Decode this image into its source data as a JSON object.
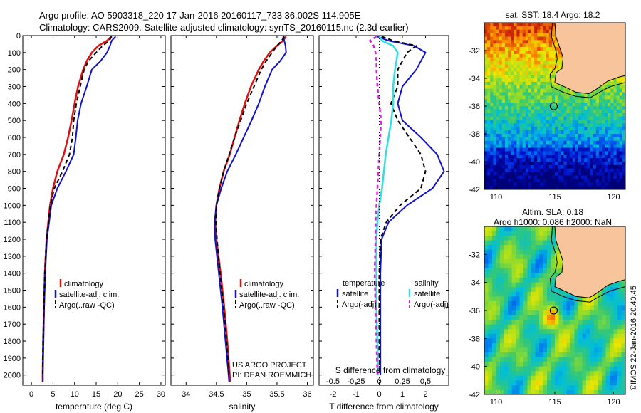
{
  "header": {
    "line1": "Argo profile: AO 5903318_220 17-Jan-2016 20160117_733 36.002S 114.905E",
    "line2": "Climatology: CARS2009. Satellite-adjusted climatology: synTS_20160115.nc (2.3d earlier)"
  },
  "colors": {
    "climatology": "#e01010",
    "satellite": "#1010d0",
    "argo": "#000000",
    "salinity_satellite": "#30e0e0",
    "salinity_argo": "#e020e0",
    "land": "#f8c49c",
    "coast": "#000000",
    "contour": "#000000"
  },
  "chart_data": [
    {
      "id": "temperature",
      "type": "line",
      "xlabel": "temperature (deg C)",
      "xlim": [
        -2,
        31
      ],
      "xticks": [
        0,
        5,
        10,
        15,
        20,
        25,
        30
      ],
      "ylim": [
        2060,
        0
      ],
      "yticks": [
        0,
        100,
        200,
        300,
        400,
        500,
        600,
        700,
        800,
        900,
        1000,
        1100,
        1200,
        1300,
        1400,
        1500,
        1600,
        1700,
        1800,
        1900,
        2000
      ],
      "legend": [
        "climatology",
        "satellite-adj. clim.",
        "Argo(..raw -QC)"
      ],
      "series": [
        {
          "name": "climatology",
          "y": [
            5,
            30,
            60,
            100,
            150,
            200,
            300,
            400,
            500,
            600,
            700,
            800,
            900,
            1000,
            1200,
            1400,
            1600,
            1800,
            2000,
            2040
          ],
          "x": [
            18.5,
            17.5,
            15.5,
            14.0,
            12.8,
            12.0,
            10.8,
            10.0,
            9.3,
            8.5,
            7.5,
            6.0,
            5.0,
            4.3,
            3.5,
            3.1,
            2.9,
            2.7,
            2.6,
            2.6
          ]
        },
        {
          "name": "satellite-adj. clim.",
          "y": [
            5,
            30,
            60,
            100,
            150,
            200,
            300,
            400,
            500,
            600,
            700,
            800,
            900,
            1000,
            1200,
            1400,
            1600,
            1800,
            2000,
            2040
          ],
          "x": [
            19.5,
            18.6,
            18.2,
            17.5,
            16.0,
            14.0,
            12.8,
            11.5,
            10.7,
            10.3,
            9.8,
            8.0,
            6.0,
            4.6,
            3.6,
            3.2,
            2.95,
            2.8,
            2.65,
            2.65
          ]
        },
        {
          "name": "Argo(..raw -QC)",
          "y": [
            5,
            30,
            60,
            100,
            150,
            200,
            300,
            400,
            500,
            600,
            700,
            800,
            900,
            1000,
            1200,
            1400,
            1600,
            1800,
            2000
          ],
          "x": [
            18.6,
            18.0,
            16.5,
            15.0,
            13.2,
            12.2,
            11.3,
            10.4,
            9.8,
            9.5,
            8.8,
            7.2,
            5.3,
            4.4,
            3.5,
            3.1,
            2.9,
            2.7,
            2.6
          ]
        }
      ]
    },
    {
      "id": "salinity",
      "type": "line",
      "xlabel": "salinity",
      "xlim": [
        33.75,
        36.1
      ],
      "xticks": [
        34,
        34.5,
        35,
        35.5,
        36
      ],
      "ylim": [
        2060,
        0
      ],
      "legend": [
        "climatology",
        "satellite-adj. clim.",
        "Argo(..raw -QC)"
      ],
      "annotation": [
        "US ARGO PROJECT",
        "PI: DEAN ROEMMICH"
      ],
      "series": [
        {
          "name": "climatology",
          "y": [
            5,
            30,
            60,
            100,
            150,
            200,
            300,
            400,
            500,
            600,
            700,
            800,
            900,
            1000,
            1100,
            1200,
            1400,
            1600,
            1800,
            2000,
            2040
          ],
          "x": [
            35.65,
            35.6,
            35.5,
            35.38,
            35.28,
            35.2,
            35.07,
            34.97,
            34.88,
            34.8,
            34.72,
            34.62,
            34.55,
            34.5,
            34.48,
            34.5,
            34.57,
            34.63,
            34.68,
            34.72,
            34.73
          ]
        },
        {
          "name": "satellite-adj. clim.",
          "y": [
            5,
            30,
            60,
            100,
            150,
            200,
            300,
            400,
            500,
            600,
            700,
            800,
            900,
            1000,
            1100,
            1200,
            1400,
            1600,
            1800,
            2000,
            2040
          ],
          "x": [
            35.6,
            35.62,
            35.64,
            35.65,
            35.55,
            35.42,
            35.3,
            35.2,
            35.08,
            34.95,
            34.82,
            34.68,
            34.58,
            34.5,
            34.47,
            34.48,
            34.54,
            34.6,
            34.65,
            34.7,
            34.71
          ]
        },
        {
          "name": "Argo(..raw -QC)",
          "y": [
            5,
            30,
            60,
            100,
            150,
            200,
            300,
            400,
            500,
            600,
            700,
            800,
            900,
            1000,
            1100,
            1200,
            1400,
            1600,
            1800,
            2000
          ],
          "x": [
            35.62,
            35.58,
            35.5,
            35.42,
            35.32,
            35.24,
            35.12,
            35.0,
            34.9,
            34.8,
            34.71,
            34.62,
            34.55,
            34.5,
            34.49,
            34.51,
            34.56,
            34.62,
            34.67,
            34.71
          ]
        }
      ]
    },
    {
      "id": "difference",
      "type": "line",
      "xlabel": "T difference from climatology",
      "xlabel_top": "S difference from climatology",
      "xlim": [
        -2.6,
        3.0
      ],
      "xticks": [
        -2,
        -1,
        0,
        1,
        2
      ],
      "xticks_top": [
        -0.5,
        -0.25,
        0,
        0.25,
        0.5
      ],
      "xticks_top_labels": [
        "-0.5",
        "-0.25",
        "0",
        "0.25",
        "0.5"
      ],
      "ylim": [
        2060,
        0
      ],
      "legend_titles": [
        "temperature",
        "salinity"
      ],
      "legend": [
        "satellite",
        "Argo(-adj)",
        "satellite",
        "Argo(-adj)"
      ],
      "series": [
        {
          "name": "satellite",
          "y": [
            5,
            30,
            60,
            100,
            200,
            300,
            400,
            500,
            600,
            700,
            800,
            900,
            1000,
            1100,
            1200,
            1400,
            1600,
            1800,
            2000
          ],
          "x": [
            -0.1,
            0.4,
            1.5,
            2.0,
            1.6,
            1.0,
            0.8,
            1.0,
            1.8,
            2.5,
            2.8,
            2.3,
            1.2,
            0.4,
            0.1,
            0.05,
            0.05,
            0.05,
            0.05
          ]
        },
        {
          "name": "Argo(-adj)",
          "y": [
            5,
            30,
            60,
            100,
            150,
            200,
            300,
            400,
            500,
            600,
            700,
            800,
            900,
            1000,
            1100,
            1200,
            1400,
            1600,
            1800,
            2000
          ],
          "x": [
            0.1,
            0.6,
            1.6,
            1.2,
            1.0,
            0.8,
            0.8,
            0.5,
            0.8,
            1.3,
            1.8,
            2.0,
            1.8,
            0.9,
            0.3,
            0.05,
            0.0,
            0.0,
            0.0,
            0.0
          ]
        },
        {
          "name": "satellite (salinity)",
          "y": [
            5,
            30,
            60,
            100,
            200,
            300,
            400,
            500,
            600,
            700,
            800,
            900,
            1000,
            1100,
            1200,
            1400,
            1600,
            1800,
            2000
          ],
          "x": [
            0.0,
            0.03,
            0.15,
            0.2,
            0.17,
            0.15,
            0.15,
            0.13,
            0.1,
            0.07,
            0.05,
            0.03,
            0.0,
            -0.02,
            -0.03,
            -0.03,
            -0.03,
            -0.02,
            -0.01
          ]
        },
        {
          "name": "Argo(-adj) (salinity)",
          "y": [
            5,
            30,
            60,
            100,
            150,
            200,
            300,
            400,
            500,
            600,
            700,
            800,
            900,
            1000,
            1100,
            1200,
            1400,
            1600,
            1800,
            2000
          ],
          "x": [
            -0.03,
            -0.1,
            -0.06,
            -0.04,
            -0.03,
            -0.03,
            -0.02,
            0.0,
            0.02,
            0.01,
            0.0,
            -0.01,
            -0.02,
            -0.03,
            -0.04,
            -0.04,
            -0.05,
            -0.04,
            -0.03,
            -0.02
          ]
        }
      ]
    },
    {
      "id": "sst_map",
      "type": "heatmap",
      "title": "sat. SST: 18.4 Argo: 18.2",
      "xlim": [
        109,
        121
      ],
      "ylim": [
        -42,
        -30
      ],
      "xticks": [
        110,
        115,
        120
      ],
      "yticks": [
        -32,
        -34,
        -36,
        -38,
        -40,
        -42
      ],
      "marker": {
        "lon": 114.905,
        "lat": -36.002
      }
    },
    {
      "id": "sla_map",
      "type": "heatmap",
      "title": "Altim. SLA: 0.18",
      "subtitle": "Argo h1000: 0.086 h2000: NaN",
      "xlim": [
        109,
        121
      ],
      "ylim": [
        -42,
        -30
      ],
      "xticks": [
        110,
        115,
        120
      ],
      "yticks": [
        -32,
        -34,
        -36,
        -38,
        -40,
        -42
      ],
      "marker": {
        "lon": 114.905,
        "lat": -36.002
      }
    }
  ],
  "footer_stamp": "©IMOS 22-Jan-2016 20:40:45"
}
